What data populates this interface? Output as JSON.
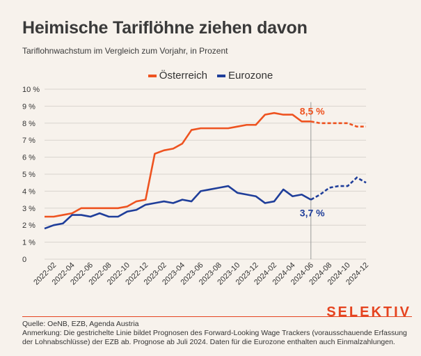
{
  "header": {
    "title": "Heimische Tariflöhne ziehen davon",
    "subtitle": "Tariflohnwachstum im Vergleich zum Vorjahr, in Prozent"
  },
  "legend": {
    "austria": "Österreich",
    "eurozone": "Eurozone"
  },
  "colors": {
    "austria": "#ee5320",
    "eurozone": "#1f3e9a",
    "brand": "#e5431f"
  },
  "brand": "SELEKTIV",
  "footer": {
    "source": "Quelle: OeNB, EZB, Agenda Austria",
    "note": "Anmerkung: Die gestrichelte Linie bildet Prognosen des Forward-Looking Wage Trackers (vorausschauende Erfassung der Lohnabschlüsse) der EZB ab. Prognose ab Juli 2024. Daten für die Eurozone enthalten auch Einmalzahlungen."
  },
  "chart_data": {
    "type": "line",
    "title": "Heimische Tariflöhne ziehen davon",
    "subtitle": "Tariflohnwachstum im Vergleich zum Vorjahr, in Prozent",
    "ylim": [
      0,
      10
    ],
    "yticks": [
      "0",
      "1 %",
      "2 %",
      "3 %",
      "4 %",
      "5 %",
      "6 %",
      "7 %",
      "8 %",
      "9 %",
      "10 %"
    ],
    "xticks": [
      "2022-02",
      "2022-04",
      "2022-06",
      "2022-08",
      "2022-10",
      "2022-12",
      "2023-02",
      "2023-04",
      "2023-06",
      "2023-08",
      "2023-10",
      "2023-12",
      "2024-02",
      "2024-04",
      "2024-06",
      "2024-08",
      "2024-10",
      "2024-12"
    ],
    "x": [
      "2022-01",
      "2022-02",
      "2022-03",
      "2022-04",
      "2022-05",
      "2022-06",
      "2022-07",
      "2022-08",
      "2022-09",
      "2022-10",
      "2022-11",
      "2022-12",
      "2023-01",
      "2023-02",
      "2023-03",
      "2023-04",
      "2023-05",
      "2023-06",
      "2023-07",
      "2023-08",
      "2023-09",
      "2023-10",
      "2023-11",
      "2023-12",
      "2024-01",
      "2024-02",
      "2024-03",
      "2024-04",
      "2024-05",
      "2024-06",
      "2024-07",
      "2024-08",
      "2024-09",
      "2024-10",
      "2024-11",
      "2024-12"
    ],
    "forecast_start": "2024-06",
    "marker": "2024-06",
    "series": [
      {
        "name": "Österreich",
        "color": "#ee5320",
        "values": [
          2.5,
          2.5,
          2.6,
          2.7,
          3.0,
          3.0,
          3.0,
          3.0,
          3.0,
          3.1,
          3.4,
          3.5,
          6.2,
          6.4,
          6.5,
          6.8,
          7.6,
          7.7,
          7.7,
          7.7,
          7.7,
          7.8,
          7.9,
          7.9,
          8.5,
          8.6,
          8.5,
          8.5,
          8.1,
          8.1,
          8.0,
          8.0,
          8.0,
          8.0,
          7.8,
          7.8
        ],
        "label": "8,5 %"
      },
      {
        "name": "Eurozone",
        "color": "#1f3e9a",
        "values": [
          1.8,
          2.0,
          2.1,
          2.6,
          2.6,
          2.5,
          2.7,
          2.5,
          2.5,
          2.8,
          2.9,
          3.2,
          3.3,
          3.4,
          3.3,
          3.5,
          3.4,
          4.0,
          4.1,
          4.2,
          4.3,
          3.9,
          3.8,
          3.7,
          3.3,
          3.4,
          4.1,
          3.7,
          3.8,
          3.5,
          3.8,
          4.2,
          4.3,
          4.3,
          4.8,
          4.5
        ],
        "label": "3,7 %"
      }
    ]
  }
}
